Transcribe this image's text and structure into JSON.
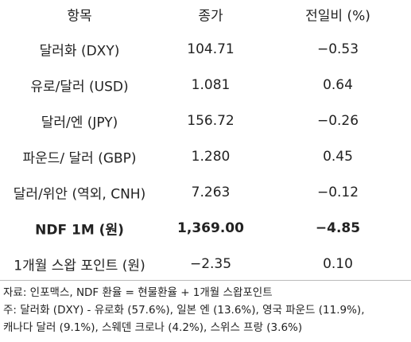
{
  "table": {
    "header": [
      "항목",
      "종가",
      "전일비 (%)"
    ],
    "rows": [
      [
        "달러화 (DXY)",
        "104.71",
        "−0.53"
      ],
      [
        "유로/달러 (USD)",
        "1.081",
        "0.64"
      ],
      [
        "달러/엔 (JPY)",
        "156.72",
        "−0.26"
      ],
      [
        "파운드/ 달러 (GBP)",
        "1.280",
        "0.45"
      ],
      [
        "달러/위안 (역외, CNH)",
        "7.263",
        "−0.12"
      ],
      [
        "NDF 1M (원)",
        "1,369.00",
        "−4.85"
      ],
      [
        "1개월 스왑 포인트 (원)",
        "−2.35",
        "0.10"
      ]
    ]
  },
  "notes": [
    "자료: 인포맥스, NDF 환율 = 현물환율 + 1개월 스왑포인트",
    "주: 달러화 (DXY) - 유로화 (57.6%), 일본 엔 (13.6%), 영국 파운드 (11.9%),",
    "캐나다 달러 (9.1%), 스웨덴 크로나 (4.2%), 스위스 프랑 (3.6%)"
  ]
}
